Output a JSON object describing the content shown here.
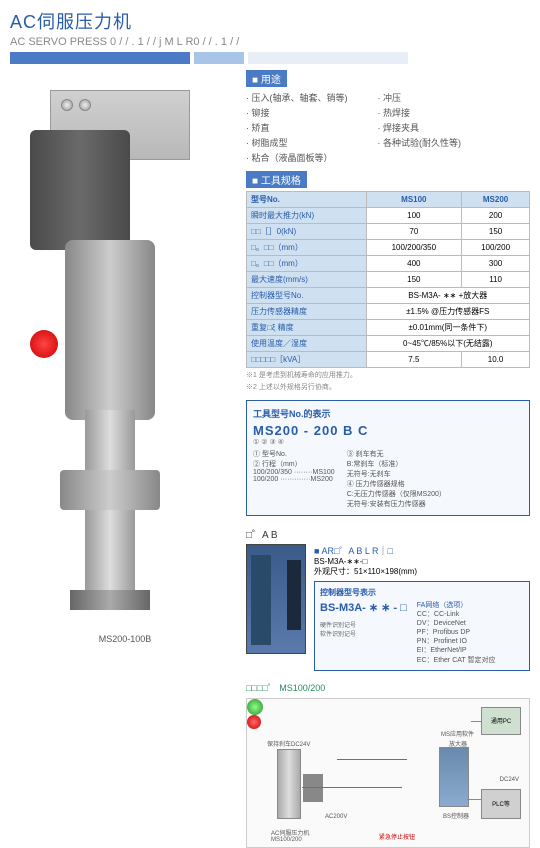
{
  "title_cn": "AC伺服压力机",
  "title_en": "AC SERVO PRESS  0 / / . 1 / / j M        L  R0 / / . 1 /  /",
  "product_label": "MS200-100B",
  "uses": {
    "header": "用途",
    "left": [
      "压入(轴承、轴套、销等)",
      "铆接",
      "矫直",
      "树脂成型",
      "粘合（液晶面板等）"
    ],
    "right": [
      "冲压",
      "热焊接",
      "焊接夹具",
      "各种试验(耐久性等)"
    ]
  },
  "spec": {
    "header": "工具规格",
    "cols": [
      "MS100",
      "MS200"
    ],
    "rows": [
      {
        "l": "型号No.",
        "v": [
          "MS100",
          "MS200"
        ],
        "hdr": true
      },
      {
        "l": "瞬时最大推力(kN)",
        "v": [
          "100",
          "200"
        ]
      },
      {
        "l": "□□［］0(kN)",
        "v": [
          "70",
          "150"
        ]
      },
      {
        "l": "□。□□（mm）",
        "v": [
          "100/200/350",
          "100/200"
        ]
      },
      {
        "l": "□。□□（mm）",
        "v": [
          "400",
          "300"
        ]
      },
      {
        "l": "最大速度(mm/s)",
        "v": [
          "150",
          "110"
        ]
      },
      {
        "l": "控制器型号No.",
        "v": [
          "BS-M3A- ∗∗ +放大器"
        ],
        "span": 2
      },
      {
        "l": "压力传感器精度",
        "v": [
          "±1.5% @压力传感器FS"
        ],
        "span": 2
      },
      {
        "l": "重复□ξ 精度",
        "v": [
          "±0.01mm(同一条件下)"
        ],
        "span": 2
      },
      {
        "l": "使用温度／湿度",
        "v": [
          "0~45℃/85%以下(无结露)"
        ],
        "span": 2
      },
      {
        "l": "□□□□□［kVA］",
        "v": [
          "7.5",
          "10.0"
        ]
      }
    ],
    "notes": [
      "※1 是考虑到机械寿命的应用推力。",
      "※2 上述以外规格另行协商。"
    ]
  },
  "model_box": {
    "title": "工具型号No.的表示",
    "model": "MS200 - 200 B C",
    "nums": "①      ②  ③ ④",
    "left": [
      "① 型号No.",
      "② 行程（mm）",
      "   100/200/350 ········MS100",
      "   100/200 ·············MS200"
    ],
    "right": [
      "③ 刹车有无",
      "   B:常刹车（标准）",
      "   无符号:无刹车",
      "④ 压力传感器规格",
      "   C:无压力传感器（仅限MS200）",
      "   无符号:安装有压力传感器"
    ]
  },
  "amp": {
    "sect": "□゜A B",
    "hdr": "■ AR□゜A B    L R｜□",
    "model": "BS-M3A-∗∗-□",
    "dim": "外观尺寸：51×110×198(mm)",
    "box_title": "控制器型号表示",
    "box_model": "BS-M3A- ∗ ∗ - □",
    "sw": "硬件识别记号",
    "sw2": "软件识别记号",
    "fa_title": "FA网络（选项）",
    "fa": [
      "CC：CC-Link",
      "DV：DeviceNet",
      "PF：Profibus DP",
      "PN：Profinet IO",
      "EI：EtherNet/IP",
      "EC：Ether CAT 暂定对应"
    ]
  },
  "sys": {
    "hdr": "□□□□゜",
    "hdr2": "MS100/200",
    "labels": {
      "pc": "通用PC",
      "sw": "MS应用软件",
      "hold": "保持刹车DC24V",
      "amp": "放大器",
      "ac": "AC200V",
      "bs": "BS控制器",
      "dc": "DC24V",
      "plc": "PLC等",
      "press": "AC伺服压力机",
      "press2": "MS100/200",
      "estop": "紧急停止按钮"
    }
  },
  "colors": {
    "primary": "#2a5caa",
    "bar": "#4a7bc4",
    "panel": "#cfe0f0"
  }
}
